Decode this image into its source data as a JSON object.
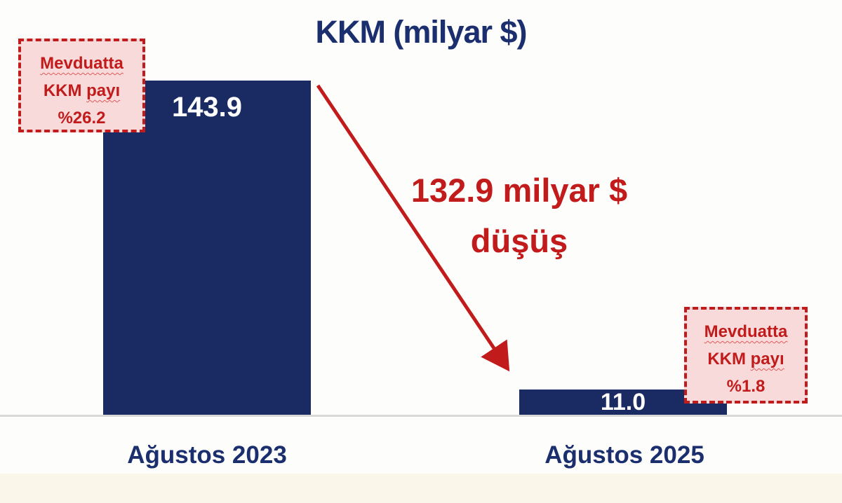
{
  "chart_data": {
    "type": "bar",
    "title": "KKM (milyar $)",
    "categories": [
      "Ağustos 2023",
      "Ağustos 2025"
    ],
    "values": [
      143.9,
      11.0
    ],
    "value_labels": [
      "143.9",
      "11.0"
    ],
    "ylim": [
      0,
      150
    ],
    "grid": false,
    "legend": "none",
    "bar_color": "#1a2a63",
    "text_navy": "#1b2e6e",
    "accent_red": "#c11b1b",
    "callout_bg": "#f9dada",
    "annotation_left": {
      "word1": "Mevduatta",
      "word2": "KKM",
      "word3": "payı",
      "value": "%26.2"
    },
    "annotation_right": {
      "word1": "Mevduatta",
      "word2": "KKM",
      "word3": "payı",
      "value": "%1.8"
    },
    "drop_annotation": {
      "line1": "132.9 milyar $",
      "line2": "düşüş"
    }
  }
}
